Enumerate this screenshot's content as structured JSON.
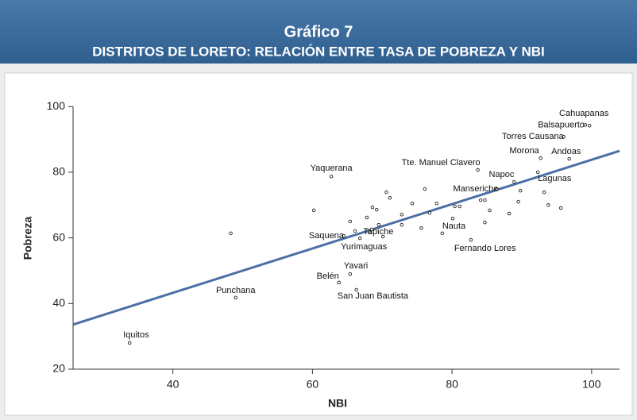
{
  "chart_data": {
    "type": "scatter",
    "title": "Gráfico 7",
    "subtitle": "DISTRITOS DE LORETO: RELACIÓN ENTRE TASA DE POBREZA Y NBI",
    "x_label": "NBI",
    "y_label": "Pobreza",
    "x": [
      33.8,
      49.0,
      63.8,
      66.3,
      65.4,
      64.5,
      66.8,
      68.2,
      62.7,
      78.6,
      82.7,
      86.4,
      88.9,
      92.3,
      83.7,
      92.7,
      96.8,
      96.0,
      99.1,
      99.7,
      48.3,
      60.2,
      65.4,
      66.1,
      67.8,
      68.5,
      68.6,
      69.2,
      69.5,
      70.6,
      71.1,
      70.1,
      72.8,
      72.8,
      74.3,
      75.6,
      76.1,
      76.8,
      77.8,
      80.1,
      80.4,
      81.1,
      84.1,
      84.7,
      84.7,
      85.4,
      88.2,
      89.5,
      89.8,
      93.2,
      93.8,
      95.6
    ],
    "y": [
      28.0,
      41.8,
      46.4,
      44.2,
      49.0,
      60.6,
      59.9,
      61.8,
      78.7,
      61.4,
      59.4,
      74.9,
      77.1,
      80.0,
      80.7,
      84.3,
      84.1,
      90.8,
      94.4,
      94.2,
      61.4,
      68.4,
      65.0,
      62.1,
      66.2,
      62.6,
      69.3,
      68.6,
      64.0,
      73.9,
      72.2,
      60.4,
      67.1,
      64.0,
      70.5,
      63.0,
      74.9,
      67.6,
      70.5,
      65.9,
      69.6,
      69.6,
      71.5,
      71.5,
      64.7,
      68.4,
      67.4,
      71.0,
      74.4,
      73.9,
      70.0,
      69.1
    ],
    "labels": [
      "Iquitos",
      "Punchana",
      "Belén",
      "San Juan Bautista",
      "Yavari",
      "Saquena",
      "Yurimaguas",
      "Tapiche",
      "Yaquerana",
      "Nauta",
      "Fernando Lores",
      "Manseriche",
      "Napoc",
      "Lagunas",
      "Tte. Manuel Clavero",
      "Morona",
      "Andoas",
      "Torres Causana",
      "Balsapuerto",
      "Cahuapanas",
      null,
      null,
      null,
      null,
      null,
      null,
      null,
      null,
      null,
      null,
      null,
      null,
      null,
      null,
      null,
      null,
      null,
      null,
      null,
      null,
      null,
      null,
      null,
      null,
      null,
      null,
      null,
      null,
      null,
      null,
      null,
      null
    ],
    "trend_line": {
      "x": [
        25.7,
        104
      ],
      "y": [
        33.6,
        86.5
      ],
      "color": "#4a6fa5"
    },
    "xlim": [
      25.7,
      104
    ],
    "ylim": [
      20,
      102
    ],
    "xticks": [
      40,
      60,
      80,
      100
    ],
    "yticks": [
      20,
      40,
      60,
      80,
      100
    ]
  }
}
